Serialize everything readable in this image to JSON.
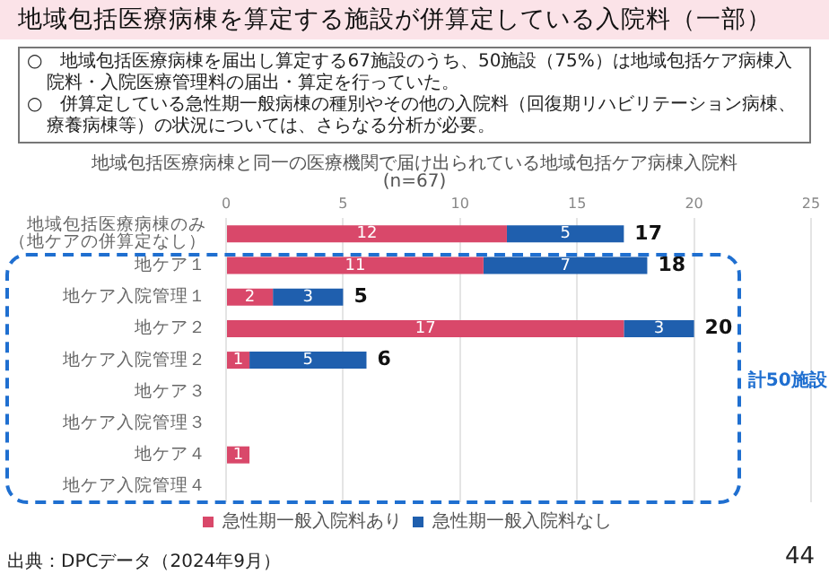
{
  "chart_data": {
    "type": "bar",
    "orientation": "horizontal",
    "stacked": true,
    "title": "地域包括医療病棟を算定する施設が併算定している入院料（一部）",
    "subtitle": "地域包括医療病棟と同一の医療機関で届け出られている地域包括ケア病棟入院料",
    "annotations": [
      "○　地域包括医療病棟を届出し算定する67施設のうち、50施設（75%）は地域包括ケア病棟入院料・入院医療管理料の届出・算定を行っていた。",
      "○　併算定している急性期一般病棟の種別やその他の入院料（回復期リハビリテーション病棟、療養病棟等）の状況については、さらなる分析が必要。",
      "(n=67)",
      "計50施設",
      "出典：DPCデータ（2024年9月）",
      "44"
    ],
    "categories": [
      "地域包括医療病棟のみ（地ケアの併算定なし）",
      "地ケア１",
      "地ケア入院管理１",
      "地ケア２",
      "地ケア入院管理２",
      "地ケア３",
      "地ケア入院管理３",
      "地ケア４",
      "地ケア入院管理４"
    ],
    "series": [
      {
        "name": "急性期一般入院料あり",
        "color": "#d9486a",
        "values": [
          12,
          11,
          2,
          17,
          1,
          null,
          null,
          1,
          null
        ]
      },
      {
        "name": "急性期一般入院料なし",
        "color": "#1f5fae",
        "values": [
          5,
          7,
          3,
          3,
          5,
          null,
          null,
          null,
          null
        ]
      }
    ],
    "totals": [
      "17",
      "18",
      "5",
      "20",
      "6",
      null,
      null,
      null,
      null
    ],
    "data_labels": true,
    "xlim": [
      0,
      25
    ],
    "xticks": [
      0,
      5,
      10,
      15,
      20,
      25
    ],
    "grid": "x",
    "legend": "bottom"
  }
}
